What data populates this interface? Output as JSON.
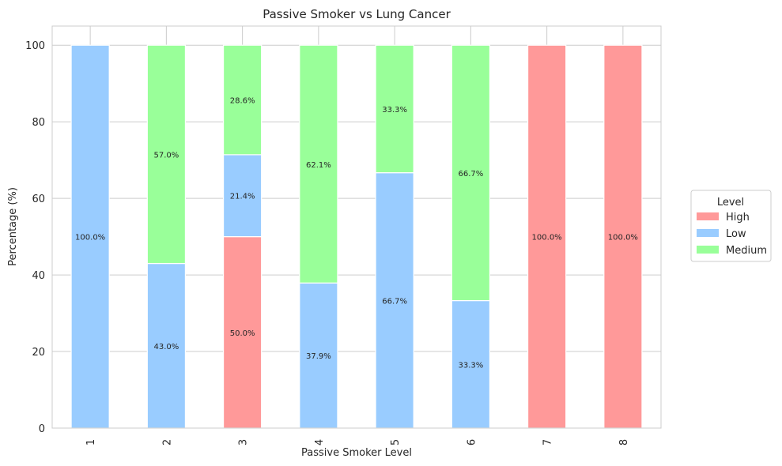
{
  "chart_data": {
    "type": "bar",
    "stacked": true,
    "title": "Passive Smoker vs Lung Cancer",
    "xlabel": "Passive Smoker Level",
    "ylabel": "Percentage (%)",
    "ylim": [
      0,
      105
    ],
    "yticks": [
      0,
      20,
      40,
      60,
      80,
      100
    ],
    "categories": [
      "1",
      "2",
      "3",
      "4",
      "5",
      "6",
      "7",
      "8"
    ],
    "series": [
      {
        "name": "High",
        "color": "#ff9999",
        "values": [
          0,
          0,
          50.0,
          0,
          0,
          0,
          100.0,
          100.0
        ]
      },
      {
        "name": "Low",
        "color": "#99ccff",
        "values": [
          100.0,
          43.0,
          21.4,
          37.9,
          66.7,
          33.3,
          0,
          0
        ]
      },
      {
        "name": "Medium",
        "color": "#99ff99",
        "values": [
          0,
          57.0,
          28.6,
          62.1,
          33.3,
          66.7,
          0,
          0
        ]
      }
    ],
    "legend": {
      "title": "Level",
      "placement": "center-right"
    },
    "grid": true
  }
}
